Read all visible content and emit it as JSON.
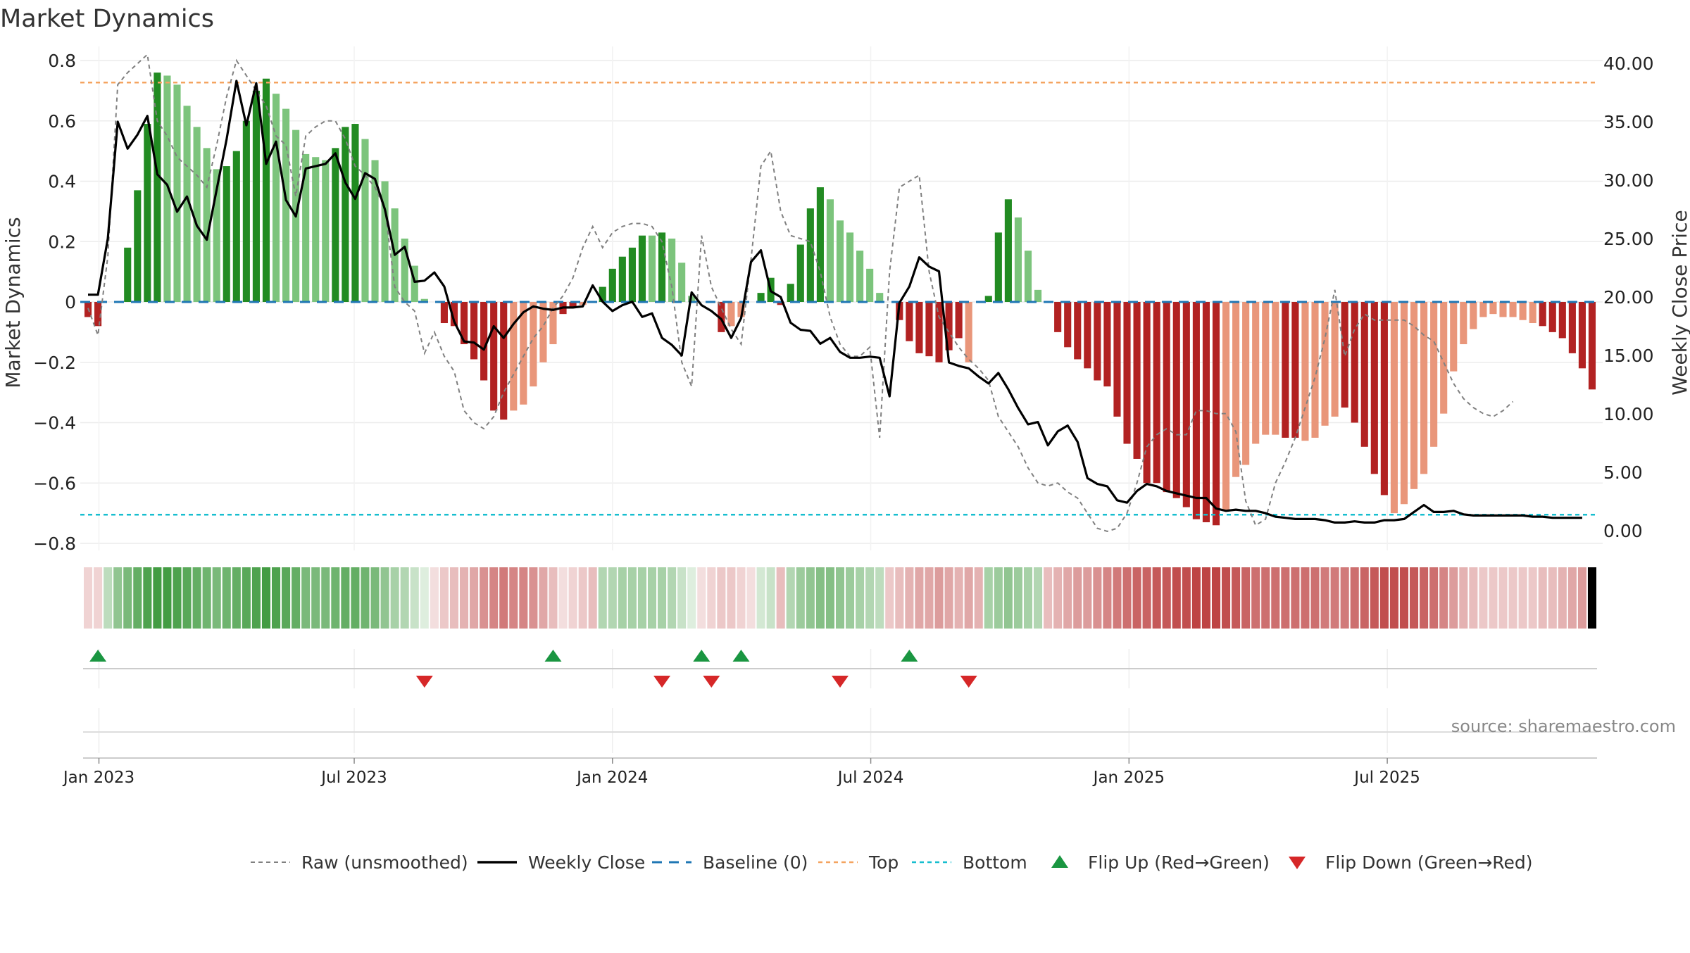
{
  "chart_data": {
    "type": "bar",
    "title": "Market Dynamics",
    "ylabel": "Market Dynamics",
    "y2label": "Weekly Close Price",
    "ylim": [
      -0.8,
      0.8
    ],
    "y2lim": [
      0,
      40
    ],
    "yticks": [
      "0.8",
      "0.6",
      "0.4",
      "0.2",
      "0",
      "−0.2",
      "−0.4",
      "−0.6",
      "−0.8"
    ],
    "y2ticks": [
      "40.00",
      "35.00",
      "30.00",
      "25.00",
      "20.00",
      "15.00",
      "10.00",
      "5.00",
      "0.00"
    ],
    "xlabels": [
      "Jan 2023",
      "Jul 2023",
      "Jan 2024",
      "Jul 2024",
      "Jan 2025",
      "Jul 2025"
    ],
    "top_level": 0.727,
    "bottom_level": -0.705,
    "baseline": 0,
    "colors": {
      "strong_green": "#228b22",
      "light_green": "#7cc47c",
      "strong_red": "#b22222",
      "light_red": "#e9967a",
      "close": "#000000",
      "raw": "#808080",
      "baseline": "#1f77b4",
      "top": "#f4a460",
      "bottom": "#17becf",
      "flip_up": "#1a9641",
      "flip_down": "#d62728"
    },
    "series": [
      {
        "name": "Market Dynamics",
        "values": [
          -0.05,
          -0.08,
          0.0,
          0.0,
          0.18,
          0.37,
          0.59,
          0.76,
          0.75,
          0.72,
          0.65,
          0.58,
          0.51,
          0.44,
          0.45,
          0.5,
          0.6,
          0.7,
          0.74,
          0.69,
          0.64,
          0.57,
          0.49,
          0.48,
          0.47,
          0.51,
          0.58,
          0.59,
          0.54,
          0.47,
          0.4,
          0.31,
          0.21,
          0.12,
          0.01,
          0.0,
          -0.07,
          -0.08,
          -0.14,
          -0.19,
          -0.26,
          -0.36,
          -0.39,
          -0.36,
          -0.34,
          -0.28,
          -0.2,
          -0.14,
          -0.04,
          -0.02,
          -0.01,
          0.0,
          0.05,
          0.11,
          0.15,
          0.18,
          0.22,
          0.22,
          0.23,
          0.21,
          0.13,
          0.02,
          0.0,
          0.0,
          -0.1,
          -0.08,
          -0.05,
          0.0,
          0.03,
          0.08,
          -0.01,
          0.06,
          0.19,
          0.31,
          0.38,
          0.34,
          0.27,
          0.23,
          0.17,
          0.11,
          0.03,
          0.0,
          -0.06,
          -0.13,
          -0.17,
          -0.18,
          -0.2,
          -0.16,
          -0.12,
          -0.2,
          0.0,
          0.02,
          0.23,
          0.34,
          0.28,
          0.17,
          0.04,
          0.0,
          -0.1,
          -0.15,
          -0.19,
          -0.22,
          -0.26,
          -0.28,
          -0.38,
          -0.47,
          -0.52,
          -0.6,
          -0.6,
          -0.63,
          -0.65,
          -0.68,
          -0.72,
          -0.73,
          -0.74,
          -0.69,
          -0.58,
          -0.54,
          -0.47,
          -0.44,
          -0.44,
          -0.45,
          -0.45,
          -0.46,
          -0.45,
          -0.41,
          -0.38,
          -0.35,
          -0.4,
          -0.48,
          -0.57,
          -0.64,
          -0.7,
          -0.67,
          -0.62,
          -0.57,
          -0.48,
          -0.37,
          -0.23,
          -0.14,
          -0.09,
          -0.05,
          -0.04,
          -0.05,
          -0.05,
          -0.06,
          -0.07,
          -0.08,
          -0.1,
          -0.12,
          -0.17,
          -0.22,
          -0.29
        ],
        "strong": [
          1,
          1,
          0,
          0,
          1,
          1,
          1,
          1,
          0,
          0,
          0,
          0,
          0,
          0,
          1,
          1,
          1,
          1,
          1,
          0,
          0,
          0,
          0,
          0,
          0,
          1,
          1,
          1,
          0,
          0,
          0,
          0,
          0,
          0,
          0,
          0,
          1,
          1,
          1,
          1,
          1,
          1,
          1,
          0,
          0,
          0,
          0,
          0,
          1,
          1,
          0,
          0,
          1,
          1,
          1,
          1,
          1,
          0,
          1,
          0,
          0,
          0,
          0,
          0,
          1,
          0,
          0,
          0,
          1,
          1,
          1,
          1,
          1,
          1,
          1,
          0,
          0,
          0,
          0,
          0,
          0,
          0,
          1,
          1,
          1,
          1,
          1,
          1,
          1,
          0,
          0,
          1,
          1,
          1,
          0,
          0,
          0,
          0,
          1,
          1,
          1,
          1,
          1,
          1,
          1,
          1,
          1,
          1,
          1,
          1,
          1,
          1,
          1,
          1,
          1,
          0,
          0,
          0,
          0,
          0,
          0,
          1,
          1,
          0,
          0,
          0,
          0,
          1,
          1,
          1,
          1,
          1,
          0,
          0,
          0,
          0,
          0,
          0,
          0,
          0,
          0,
          0,
          0,
          0,
          0,
          0,
          0,
          1,
          1,
          1,
          1,
          1,
          1
        ]
      },
      {
        "name": "Weekly Close",
        "values": [
          20.2,
          20.2,
          25.0,
          35.0,
          32.7,
          33.9,
          35.5,
          30.5,
          29.6,
          27.3,
          28.6,
          26.1,
          24.9,
          29.2,
          33.5,
          38.5,
          34.7,
          38.3,
          31.4,
          33.3,
          28.3,
          26.9,
          31.0,
          31.2,
          31.4,
          32.3,
          29.8,
          28.4,
          30.6,
          30.1,
          27.5,
          23.6,
          24.3,
          21.3,
          21.4,
          22.1,
          20.9,
          17.9,
          16.2,
          16.1,
          15.5,
          17.5,
          16.5,
          17.7,
          18.7,
          19.2,
          19.0,
          18.9,
          19.1,
          19.1,
          19.2,
          21.0,
          19.6,
          18.8,
          19.3,
          19.6,
          18.3,
          18.6,
          16.5,
          15.9,
          15.0,
          20.4,
          19.3,
          18.8,
          18.1,
          16.5,
          18.2,
          23.0,
          24.0,
          20.5,
          20.0,
          17.8,
          17.2,
          17.1,
          16.0,
          16.5,
          15.3,
          14.8,
          14.8,
          14.9,
          14.8,
          11.5,
          19.5,
          20.9,
          23.4,
          22.6,
          22.2,
          14.4,
          14.1,
          13.9,
          13.2,
          12.6,
          13.5,
          12.1,
          10.5,
          9.1,
          9.3,
          7.3,
          8.5,
          9.0,
          7.6,
          4.5,
          4.0,
          3.8,
          2.6,
          2.4,
          3.4,
          4.0,
          3.8,
          3.4,
          3.2,
          3.0,
          2.8,
          2.8,
          1.9,
          1.7,
          1.8,
          1.7,
          1.7,
          1.5,
          1.2,
          1.1,
          1.0,
          1.0,
          1.0,
          0.9,
          0.7,
          0.7,
          0.8,
          0.7,
          0.7,
          0.9,
          0.9,
          1.0,
          1.6,
          2.2,
          1.6,
          1.6,
          1.7,
          1.4,
          1.3,
          1.3,
          1.3,
          1.3,
          1.3,
          1.3,
          1.2,
          1.2,
          1.1,
          1.1,
          1.1,
          1.1
        ]
      },
      {
        "name": "Raw (unsmoothed)",
        "values": [
          -0.02,
          -0.11,
          0.15,
          0.72,
          0.76,
          0.79,
          0.82,
          0.6,
          0.55,
          0.48,
          0.45,
          0.42,
          0.38,
          0.52,
          0.68,
          0.8,
          0.75,
          0.7,
          0.65,
          0.55,
          0.52,
          0.35,
          0.55,
          0.58,
          0.6,
          0.6,
          0.54,
          0.45,
          0.42,
          0.38,
          0.31,
          0.05,
          0.0,
          -0.03,
          -0.17,
          -0.1,
          -0.18,
          -0.23,
          -0.36,
          -0.4,
          -0.42,
          -0.38,
          -0.3,
          -0.24,
          -0.18,
          -0.12,
          -0.08,
          -0.02,
          0.02,
          0.08,
          0.18,
          0.25,
          0.18,
          0.23,
          0.25,
          0.26,
          0.26,
          0.25,
          0.2,
          0.05,
          -0.2,
          -0.28,
          0.22,
          0.05,
          -0.02,
          -0.09,
          -0.14,
          0.14,
          0.45,
          0.5,
          0.3,
          0.22,
          0.21,
          0.2,
          0.1,
          -0.05,
          -0.14,
          -0.18,
          -0.18,
          -0.15,
          -0.45,
          0.1,
          0.38,
          0.4,
          0.42,
          0.1,
          -0.05,
          -0.1,
          -0.15,
          -0.19,
          -0.22,
          -0.26,
          -0.38,
          -0.43,
          -0.48,
          -0.55,
          -0.6,
          -0.61,
          -0.6,
          -0.63,
          -0.65,
          -0.7,
          -0.75,
          -0.76,
          -0.75,
          -0.7,
          -0.6,
          -0.48,
          -0.44,
          -0.42,
          -0.44,
          -0.44,
          -0.36,
          -0.36,
          -0.37,
          -0.37,
          -0.43,
          -0.66,
          -0.74,
          -0.72,
          -0.6,
          -0.53,
          -0.45,
          -0.35,
          -0.25,
          -0.12,
          0.04,
          -0.18,
          -0.09,
          -0.04,
          -0.06,
          -0.06,
          -0.06,
          -0.06,
          -0.08,
          -0.11,
          -0.13,
          -0.2,
          -0.27,
          -0.32,
          -0.35,
          -0.37,
          -0.38,
          -0.36,
          -0.33
        ]
      }
    ],
    "legend": [
      "Raw (unsmoothed)",
      "Weekly Close",
      "Baseline (0)",
      "Top",
      "Bottom",
      "Flip Up (Red→Green)",
      "Flip Down (Green→Red)"
    ],
    "legend_position": "bottom-center",
    "flip_up_weeks": [
      1,
      47,
      62,
      66,
      83
    ],
    "flip_down_weeks": [
      34,
      58,
      63,
      76,
      89
    ],
    "heat_intensity": [
      0.2,
      0.2,
      0.3,
      0.5,
      0.6,
      0.7,
      0.8,
      0.85,
      0.85,
      0.8,
      0.75,
      0.7,
      0.65,
      0.6,
      0.65,
      0.7,
      0.75,
      0.8,
      0.85,
      0.8,
      0.75,
      0.7,
      0.6,
      0.6,
      0.6,
      0.65,
      0.7,
      0.7,
      0.65,
      0.6,
      0.5,
      0.4,
      0.35,
      0.25,
      0.15,
      0.15,
      0.25,
      0.3,
      0.35,
      0.4,
      0.5,
      0.55,
      0.6,
      0.55,
      0.55,
      0.5,
      0.4,
      0.3,
      0.15,
      0.2,
      0.25,
      0.3,
      0.35,
      0.35,
      0.4,
      0.4,
      0.4,
      0.4,
      0.4,
      0.35,
      0.25,
      0.15,
      0.15,
      0.2,
      0.25,
      0.25,
      0.2,
      0.15,
      0.2,
      0.25,
      0.3,
      0.35,
      0.45,
      0.5,
      0.55,
      0.55,
      0.5,
      0.45,
      0.4,
      0.35,
      0.3,
      0.25,
      0.3,
      0.35,
      0.4,
      0.4,
      0.45,
      0.4,
      0.35,
      0.4,
      0.35,
      0.4,
      0.45,
      0.5,
      0.45,
      0.4,
      0.35,
      0.3,
      0.35,
      0.4,
      0.45,
      0.45,
      0.5,
      0.55,
      0.6,
      0.65,
      0.7,
      0.7,
      0.75,
      0.75,
      0.8,
      0.8,
      0.85,
      0.85,
      0.85,
      0.8,
      0.75,
      0.7,
      0.65,
      0.65,
      0.65,
      0.65,
      0.65,
      0.65,
      0.65,
      0.6,
      0.6,
      0.6,
      0.65,
      0.7,
      0.75,
      0.8,
      0.8,
      0.8,
      0.75,
      0.7,
      0.65,
      0.55,
      0.45,
      0.35,
      0.3,
      0.25,
      0.25,
      0.25,
      0.25,
      0.25,
      0.25,
      0.3,
      0.3,
      0.35,
      0.4,
      0.45
    ],
    "source_note": "source: sharemaestro.com"
  }
}
